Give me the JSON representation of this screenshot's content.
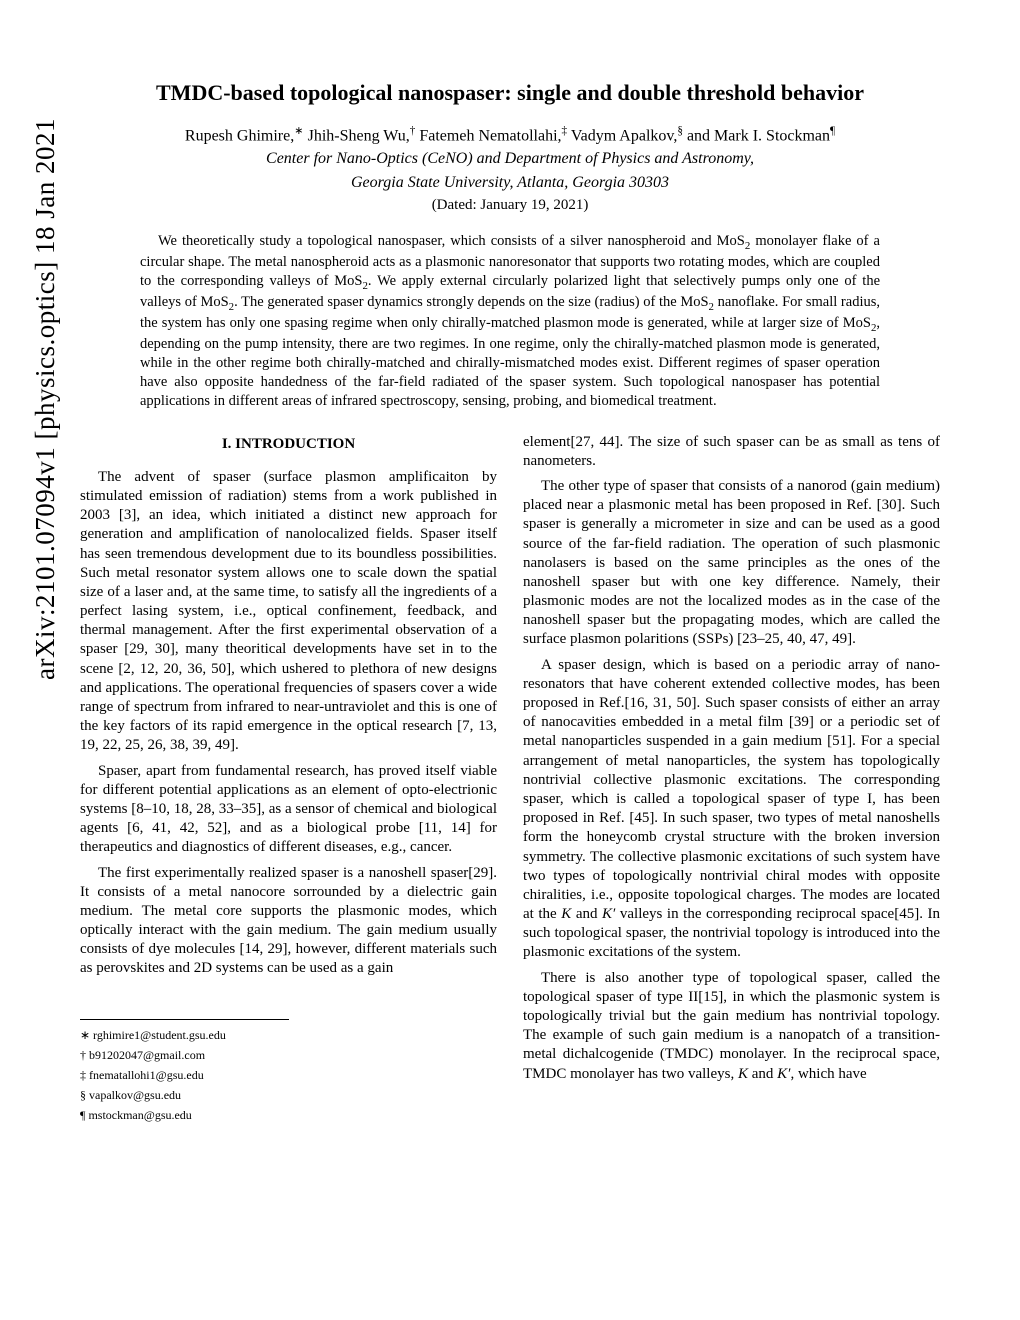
{
  "arxiv_stamp": "arXiv:2101.07094v1  [physics.optics]  18 Jan 2021",
  "title": "TMDC-based topological nanospaser: single and double threshold behavior",
  "authors_html": "Rupesh Ghimire,<sup>∗</sup> Jhih-Sheng Wu,<sup>†</sup> Fatemeh Nematollahi,<sup>‡</sup> Vadym Apalkov,<sup>§</sup> and Mark I. Stockman<sup>¶</sup>",
  "affiliation_line1": "Center for Nano-Optics (CeNO) and Department of Physics and Astronomy,",
  "affiliation_line2": "Georgia State University, Atlanta, Georgia 30303",
  "dated": "(Dated: January 19, 2021)",
  "abstract_html": "We theoretically study a topological nanospaser, which consists of a silver nanospheroid and MoS<sub>2</sub> monolayer flake of a circular shape. The metal nanospheroid acts as a plasmonic nanoresonator that supports two rotating modes, which are coupled to the corresponding valleys of MoS<sub>2</sub>. We apply external circularly polarized light that selectively pumps only one of the valleys of MoS<sub>2</sub>. The generated spaser dynamics strongly depends on the size (radius) of the MoS<sub>2</sub> nanoflake. For small radius, the system has only one spasing regime when only chirally-matched plasmon mode is generated, while at larger size of MoS<sub>2</sub>, depending on the pump intensity, there are two regimes. In one regime, only the chirally-matched plasmon mode is generated, while in the other regime both chirally-matched and chirally-mismatched modes exist. Different regimes of spaser operation have also opposite handedness of the far-field radiated of the spaser system. Such topological nanospaser has potential applications in different areas of infrared spectroscopy, sensing, probing, and biomedical treatment.",
  "section_heading": "I.    INTRODUCTION",
  "col1_p1": "The advent of spaser (surface plasmon amplificaiton by stimulated emission of radiation) stems from a work published in 2003 [3], an idea, which initiated a distinct new approach for generation and amplification of nanolocalized fields. Spaser itself has seen tremendous development due to its boundless possibilities. Such metal resonator system allows one to scale down the spatial size of a laser and, at the same time, to satisfy all the ingredients of a perfect lasing system, i.e., optical confinement, feedback, and thermal management. After the first experimental observation of a spaser [29, 30], many theoritical developments have set in to the scene [2, 12, 20, 36, 50], which ushered to plethora of new designs and applications. The operational frequencies of spasers cover a wide range of spectrum from infrared to near-untraviolet and this is one of the key factors of its rapid emergence in the optical research [7, 13, 19, 22, 25, 26, 38, 39, 49].",
  "col1_p2": "Spaser, apart from fundamental research, has proved itself viable for different potential applications as an element of opto-electrionic systems [8–10, 18, 28, 33–35], as a sensor of chemical and biological agents [6, 41, 42, 52], and as a biological probe [11, 14] for therapeutics and diagnostics of different diseases, e.g., cancer.",
  "col1_p3": "The first experimentally realized spaser is a nanoshell spaser[29]. It consists of a metal nanocore sorrounded by a dielectric gain medium. The metal core supports the plasmonic modes, which optically interact with the gain medium. The gain medium usually consists of dye molecules [14, 29], however, different materials such as perovskites and 2D systems can be used as a gain",
  "col2_p0": "element[27, 44]. The size of such spaser can be as small as tens of nanometers.",
  "col2_p1": "The other type of spaser that consists of a nanorod (gain medium) placed near a plasmonic metal has been proposed in Ref. [30]. Such spaser is generally a micrometer in size and can be used as a good source of the far-field radiation. The operation of such plasmonic nanolasers is based on the same principles as the ones of the nanoshell spaser but with one key difference. Namely, their plasmonic modes are not the localized modes as in the case of the nanoshell spaser but the propagating modes, which are called the surface plasmon polaritions (SSPs) [23–25, 40, 47, 49].",
  "col2_p2_html": "A spaser design, which is based on a periodic array of nano-resonators that have coherent extended collective modes, has been proposed in Ref.[16, 31, 50]. Such spaser consists of either an array of nanocavities embedded in a metal film [39] or a periodic set of metal nanoparticles suspended in a gain medium [51]. For a special arrangement of metal nanoparticles, the system has topologically nontrivial collective plasmonic excitations. The corresponding spaser, which is called a topological spaser of type I, has been proposed in Ref. [45]. In such spaser, two types of metal nanoshells form the honeycomb crystal structure with the broken inversion symmetry. The collective plasmonic excitations of such system have two types of topologically nontrivial chiral modes with opposite chiralities, i.e., opposite topological charges. The modes are located at the <i>K</i> and <i>K′</i> valleys in the corresponding reciprocal space[45]. In such topological spaser, the nontrivial topology is introduced into the plasmonic excitations of the system.",
  "col2_p3_html": "There is also another type of topological spaser, called the topological spaser of type II[15], in which the plasmonic system is topologically trivial but the gain medium has nontrivial topology. The example of such gain medium is a nanopatch of a transition-metal dichalcogenide (TMDC) monolayer. In the reciprocal space, TMDC monolayer has two valleys, <i>K</i> and <i>K′</i>, which have",
  "footnotes": {
    "f1": "∗ rghimire1@student.gsu.edu",
    "f2": "† b91202047@gmail.com",
    "f3": "‡ fnematallohi1@gsu.edu",
    "f4": "§ vapalkov@gsu.edu",
    "f5": "¶ mstockman@gsu.edu"
  }
}
